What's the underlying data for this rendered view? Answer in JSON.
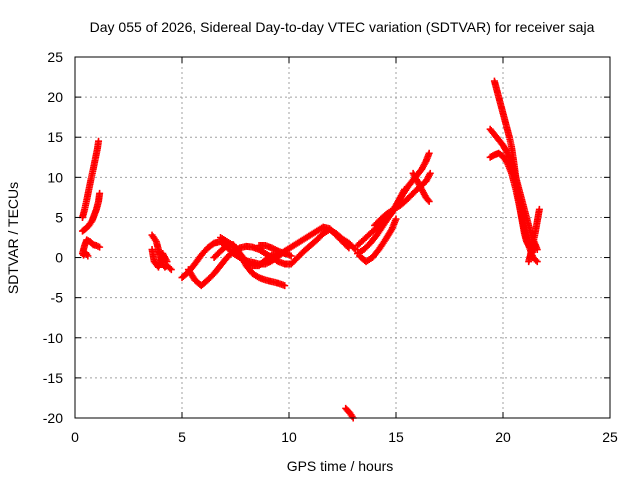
{
  "chart_data": {
    "type": "scatter",
    "title": "Day 055 of 2026, Sidereal Day-to-day VTEC variation (SDTVAR) for receiver saja",
    "xlabel": "GPS time / hours",
    "ylabel": "SDTVAR / TECUs",
    "xlim": [
      0,
      25
    ],
    "ylim": [
      -20,
      25
    ],
    "xticks": [
      "0",
      "5",
      "10",
      "15",
      "20",
      "25"
    ],
    "yticks": [
      "25",
      "20",
      "15",
      "10",
      "5",
      "0",
      "-5",
      "-10",
      "-15",
      "-20"
    ],
    "grid": true,
    "marker": "+",
    "color": "#ff0000",
    "series": [
      {
        "x": [
          0.35,
          0.45,
          0.55,
          0.65,
          0.75,
          0.85,
          0.95,
          1.05,
          1.1
        ],
        "y": [
          5.0,
          6.0,
          7.2,
          8.5,
          9.8,
          11.0,
          12.3,
          13.6,
          14.5
        ]
      },
      {
        "x": [
          0.35,
          0.5,
          0.65,
          0.8,
          0.9,
          1.0,
          1.1,
          1.15
        ],
        "y": [
          3.3,
          3.6,
          4.0,
          4.6,
          5.3,
          6.0,
          7.0,
          8.0
        ]
      },
      {
        "x": [
          0.35,
          0.45,
          0.55,
          0.7,
          0.85,
          1.0,
          1.15
        ],
        "y": [
          0.5,
          1.5,
          2.2,
          2.0,
          1.6,
          1.5,
          1.3
        ]
      },
      {
        "x": [
          0.4,
          0.5,
          0.6
        ],
        "y": [
          0.3,
          0.6,
          0.2
        ]
      },
      {
        "x": [
          3.6,
          3.8,
          3.9,
          4.0,
          4.1,
          4.2,
          4.3,
          4.5
        ],
        "y": [
          2.8,
          2.0,
          1.0,
          0.0,
          -0.8,
          -1.2,
          -1.0,
          -1.5
        ]
      },
      {
        "x": [
          3.6,
          3.7,
          3.9,
          4.1,
          4.3
        ],
        "y": [
          1.0,
          -0.5,
          -1.2,
          0.5,
          -0.5
        ]
      },
      {
        "x": [
          5.0,
          5.3,
          5.6,
          5.9,
          6.2,
          6.5,
          6.8,
          7.1,
          7.4,
          7.7,
          8.0,
          8.3,
          8.6,
          8.9,
          9.2,
          9.5,
          9.8,
          10.1,
          10.4,
          10.7,
          11.0,
          11.3,
          11.6,
          11.9,
          12.2,
          12.5,
          12.8
        ],
        "y": [
          -2.5,
          -1.8,
          -0.8,
          0.3,
          1.2,
          1.8,
          2.0,
          1.3,
          0.5,
          0.0,
          -0.4,
          -0.6,
          -0.8,
          -0.8,
          -0.4,
          0.2,
          0.8,
          1.3,
          1.8,
          2.3,
          2.8,
          3.3,
          3.8,
          3.6,
          2.8,
          2.0,
          1.2
        ]
      },
      {
        "x": [
          5.3,
          5.6,
          5.9,
          6.2,
          6.5,
          6.8,
          7.1,
          7.4,
          7.7,
          8.0,
          8.3,
          8.6,
          8.9,
          9.2,
          9.5,
          9.8,
          10.1,
          10.4,
          10.7,
          11.0,
          11.3,
          11.6,
          11.9,
          12.2,
          12.5,
          12.8,
          13.1
        ],
        "y": [
          -1.5,
          -2.8,
          -3.5,
          -2.8,
          -2.0,
          -1.0,
          0.0,
          0.8,
          1.2,
          1.4,
          1.3,
          1.0,
          0.5,
          0.0,
          -0.5,
          -0.8,
          -0.8,
          0.0,
          0.8,
          1.5,
          2.2,
          3.0,
          3.5,
          3.0,
          2.3,
          1.8,
          1.0
        ]
      },
      {
        "x": [
          6.5,
          6.8,
          7.1,
          7.4,
          7.7,
          8.0,
          8.3,
          8.6,
          8.9,
          9.2,
          9.5,
          9.8
        ],
        "y": [
          0.0,
          0.8,
          1.5,
          1.6,
          0.5,
          -1.0,
          -2.0,
          -2.5,
          -2.8,
          -3.0,
          -3.2,
          -3.5
        ]
      },
      {
        "x": [
          6.8,
          7.1,
          7.4,
          7.7,
          8.0,
          8.3,
          8.6,
          8.9,
          9.2,
          9.5,
          9.8,
          10.1
        ],
        "y": [
          2.5,
          2.0,
          1.5,
          0.5,
          -0.5,
          -1.0,
          -1.0,
          -0.3,
          0.3,
          0.5,
          0.6,
          0.2
        ]
      },
      {
        "x": [
          8.6,
          8.9,
          9.2,
          9.5,
          9.8
        ],
        "y": [
          1.5,
          1.5,
          1.2,
          0.8,
          0.5
        ]
      },
      {
        "x": [
          12.65,
          12.75,
          12.85,
          12.95,
          13.0
        ],
        "y": [
          -18.8,
          -19.1,
          -19.4,
          -19.8,
          -20.0
        ]
      },
      {
        "x": [
          13.2,
          13.5,
          13.8,
          14.1,
          14.4,
          14.7,
          15.0,
          15.3,
          15.6,
          15.9,
          16.2,
          16.4,
          16.55
        ],
        "y": [
          0.5,
          1.0,
          1.8,
          2.8,
          4.0,
          5.2,
          6.5,
          7.8,
          9.0,
          10.0,
          11.0,
          12.0,
          13.0
        ]
      },
      {
        "x": [
          13.2,
          13.4,
          13.6,
          13.8,
          14.0,
          14.2,
          14.4,
          14.6,
          14.8,
          15.0,
          15.2,
          15.4
        ],
        "y": [
          1.5,
          2.0,
          2.5,
          3.0,
          3.5,
          4.0,
          4.5,
          5.0,
          5.5,
          6.5,
          7.5,
          8.5
        ]
      },
      {
        "x": [
          14.0,
          14.3,
          14.6,
          14.9,
          15.2,
          15.5,
          15.8,
          16.1,
          16.4,
          16.6
        ],
        "y": [
          4.0,
          4.8,
          5.5,
          6.0,
          6.5,
          7.2,
          8.0,
          8.8,
          9.5,
          10.5
        ]
      },
      {
        "x": [
          15.8,
          16.0,
          16.2,
          16.4,
          16.55
        ],
        "y": [
          10.5,
          9.5,
          8.5,
          7.5,
          7.0
        ]
      },
      {
        "x": [
          13.3,
          13.6,
          13.9,
          14.2,
          14.5,
          14.8,
          15.0
        ],
        "y": [
          0.2,
          -0.5,
          0.0,
          1.0,
          2.2,
          3.5,
          4.8
        ]
      },
      {
        "x": [
          19.6,
          19.7,
          19.8,
          19.9,
          20.0,
          20.1,
          20.2,
          20.3,
          20.4,
          20.5,
          20.6,
          20.7,
          20.8,
          20.9,
          21.0,
          21.1,
          21.2
        ],
        "y": [
          22.0,
          21.0,
          20.0,
          19.0,
          18.0,
          17.0,
          16.0,
          15.0,
          13.8,
          12.0,
          10.0,
          8.0,
          6.0,
          4.5,
          3.0,
          2.0,
          1.5
        ]
      },
      {
        "x": [
          19.4,
          19.55,
          19.7,
          19.85,
          20.0,
          20.15,
          20.3,
          20.45,
          20.6,
          20.75,
          20.9,
          21.05,
          21.2,
          21.35,
          21.5
        ],
        "y": [
          16.0,
          15.5,
          15.0,
          14.5,
          14.0,
          13.3,
          12.5,
          11.5,
          10.0,
          8.5,
          7.0,
          5.5,
          4.0,
          2.5,
          1.0
        ]
      },
      {
        "x": [
          19.4,
          19.6,
          19.8,
          20.0,
          20.2,
          20.4,
          20.6,
          20.8,
          21.0,
          21.2,
          21.4,
          21.6
        ],
        "y": [
          12.5,
          12.8,
          13.0,
          12.6,
          11.8,
          10.5,
          8.5,
          6.0,
          3.5,
          1.5,
          0.0,
          -0.5
        ]
      },
      {
        "x": [
          21.2,
          21.3,
          21.4,
          21.5,
          21.6,
          21.7
        ],
        "y": [
          -0.5,
          0.5,
          1.8,
          3.0,
          4.5,
          6.0
        ]
      },
      {
        "x": [
          21.3,
          21.45,
          21.6
        ],
        "y": [
          0.5,
          2.0,
          1.0
        ]
      }
    ]
  }
}
